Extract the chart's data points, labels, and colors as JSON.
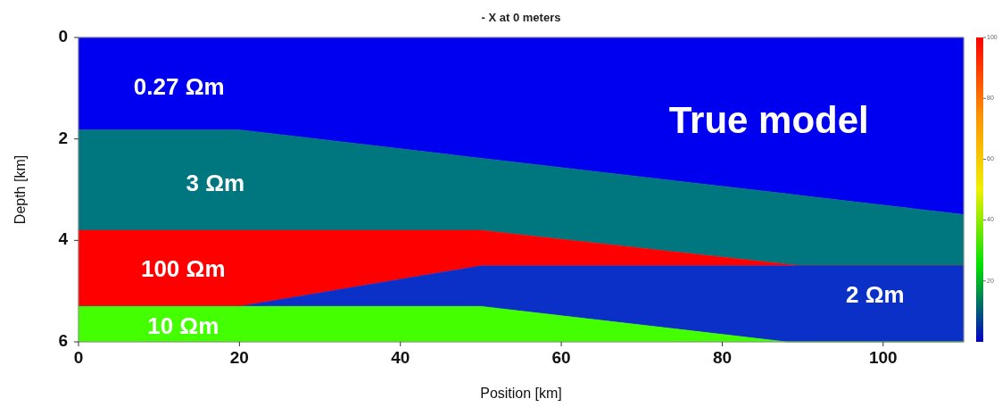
{
  "chart_data": {
    "type": "area",
    "stacked": true,
    "title": "- X at 0 meters",
    "xlabel": "Position [km]",
    "ylabel": "Depth [km]",
    "x": [
      0,
      20,
      50,
      88,
      90,
      110
    ],
    "series": [
      {
        "name": "0.27 Ωm",
        "color": "#0000f0",
        "values": [
          1.82,
          1.82,
          2.38,
          3.08,
          3.12,
          3.49
        ]
      },
      {
        "name": "3 Ωm",
        "color": "#00777f",
        "values": [
          1.98,
          1.98,
          1.42,
          1.39,
          1.38,
          1.01
        ]
      },
      {
        "name": "100 Ωm",
        "color": "#ff0000",
        "values": [
          1.5,
          1.5,
          0.7,
          0.03,
          0,
          0
        ]
      },
      {
        "name": "2 Ωm",
        "color": "#0a30c8",
        "values": [
          0,
          0,
          0.8,
          1.5,
          1.5,
          1.5
        ]
      },
      {
        "name": "10 Ωm",
        "color": "#44ff00",
        "values": [
          0.7,
          0.7,
          0.7,
          0,
          0,
          0
        ]
      }
    ],
    "xlim": [
      0,
      110
    ],
    "xticks": [
      0,
      20,
      40,
      60,
      80,
      100
    ],
    "ylim": [
      6,
      0
    ],
    "yticks": [
      0,
      2,
      4,
      6
    ],
    "clim": [
      0,
      100
    ],
    "cticks": [
      20,
      40,
      60,
      80,
      100
    ],
    "annotations": [
      "True model"
    ],
    "grid": false
  }
}
